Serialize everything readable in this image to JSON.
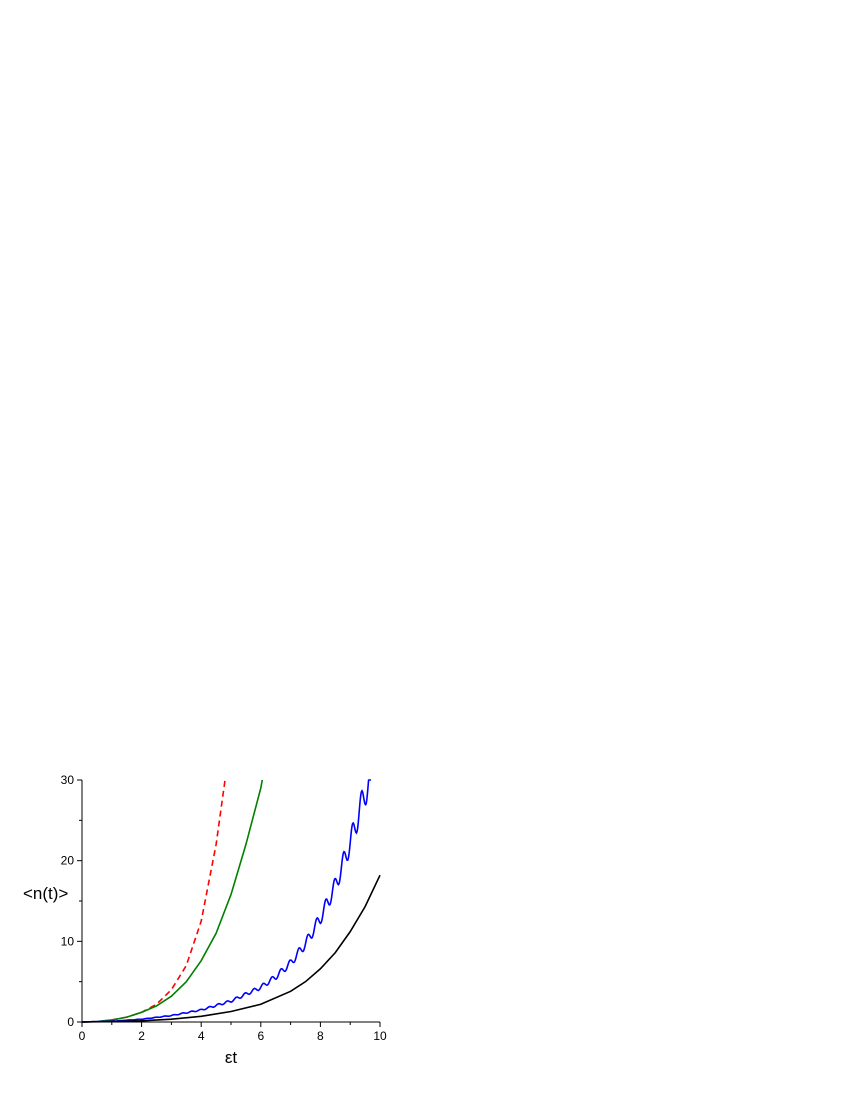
{
  "chart_data": {
    "type": "line",
    "title": "",
    "xlabel": "εt",
    "ylabel": "<n(t)>",
    "xlim": [
      0,
      10
    ],
    "ylim": [
      0,
      30
    ],
    "x_ticks": [
      0,
      2,
      4,
      6,
      8,
      10
    ],
    "y_ticks": [
      0,
      10,
      20,
      30
    ],
    "grid": false,
    "legend": "none",
    "series": [
      {
        "color": "#ff0000",
        "style": "dashed",
        "x": [
          0.0,
          0.5,
          1.0,
          1.5,
          2.0,
          2.5,
          3.0,
          3.5,
          4.0,
          4.5,
          4.8
        ],
        "y": [
          0.0,
          0.06,
          0.25,
          0.6,
          1.2,
          2.2,
          4.0,
          7.0,
          12.5,
          22.0,
          30.0
        ]
      },
      {
        "color": "#008000",
        "style": "solid",
        "x": [
          0.0,
          0.5,
          1.0,
          1.5,
          2.0,
          2.5,
          3.0,
          3.5,
          4.0,
          4.5,
          5.0,
          5.5,
          6.0,
          6.05
        ],
        "y": [
          0.0,
          0.05,
          0.25,
          0.6,
          1.2,
          2.0,
          3.2,
          5.0,
          7.6,
          11.0,
          15.8,
          22.0,
          29.0,
          30.0
        ]
      },
      {
        "color": "#0000ff",
        "style": "solid-oscillating",
        "x": [
          0.0,
          1.0,
          2.0,
          3.0,
          4.0,
          5.0,
          6.0,
          6.5,
          7.0,
          7.5,
          8.0,
          8.5,
          9.0,
          9.5,
          9.7
        ],
        "y": [
          0.0,
          0.1,
          0.35,
          0.8,
          1.5,
          2.6,
          4.3,
          5.6,
          7.3,
          9.7,
          12.9,
          16.9,
          22.2,
          28.5,
          30.0
        ]
      },
      {
        "color": "#000000",
        "style": "solid",
        "x": [
          0.0,
          1.0,
          2.0,
          3.0,
          4.0,
          5.0,
          6.0,
          7.0,
          7.5,
          8.0,
          8.5,
          9.0,
          9.5,
          10.0
        ],
        "y": [
          0.0,
          0.05,
          0.15,
          0.35,
          0.7,
          1.3,
          2.2,
          3.8,
          5.0,
          6.6,
          8.6,
          11.2,
          14.3,
          18.2
        ]
      }
    ]
  }
}
